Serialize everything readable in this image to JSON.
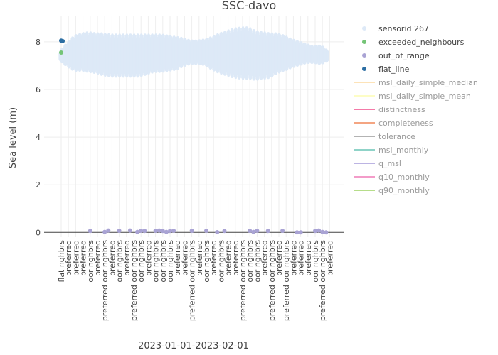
{
  "chart_data": {
    "type": "scatter",
    "title": "SSC-davo",
    "xlabel": "2023-01-01-2023-02-01",
    "ylabel": "Sea level (m)",
    "ylim": [
      -0.2,
      9.1
    ],
    "yticks": [
      0,
      2,
      4,
      6,
      8
    ],
    "grid": true,
    "legend_position": "right",
    "categories": [
      "flat nghbrs",
      "preferred",
      "preferred",
      "preferred",
      "oor nghbrs",
      "preferred",
      "preferred oor nghbrs",
      "preferred",
      "oor nghbrs",
      "preferred",
      "preferred oor nghbrs",
      "oor nghbrs",
      "preferred",
      "oor nghbrs",
      "oor nghbrs",
      "oor nghbrs",
      "preferred",
      "preferred",
      "preferred oor nghbrs",
      "preferred",
      "oor nghbrs",
      "preferred",
      "oor nghbrs",
      "preferred",
      "preferred",
      "preferred oor nghbrs",
      "oor nghbrs",
      "oor nghbrs",
      "preferred",
      "preferred oor nghbrs",
      "preferred",
      "preferred oor nghbrs",
      "preferred",
      "preferred",
      "preferred",
      "oor nghbrs",
      "preferred oor nghbrs",
      "preferred"
    ],
    "band": {
      "name": "sensorid 267",
      "color": "#dde9f7",
      "center": [
        7.4,
        7.45,
        7.5,
        7.55,
        7.55,
        7.5,
        7.45,
        7.4,
        7.4,
        7.4,
        7.4,
        7.4,
        7.45,
        7.5,
        7.5,
        7.5,
        7.5,
        7.55,
        7.55,
        7.55,
        7.55,
        7.5,
        7.5,
        7.5,
        7.5,
        7.5,
        7.5,
        7.4,
        7.4,
        7.4,
        7.5,
        7.5,
        7.5,
        7.5,
        7.5,
        7.45,
        7.45,
        7.4
      ],
      "amplitude": [
        0.2,
        0.5,
        0.75,
        0.8,
        0.85,
        0.85,
        0.9,
        0.9,
        0.9,
        0.9,
        0.9,
        0.9,
        0.85,
        0.8,
        0.8,
        0.75,
        0.7,
        0.6,
        0.5,
        0.5,
        0.55,
        0.7,
        0.85,
        0.95,
        1.05,
        1.1,
        1.1,
        1.05,
        1.0,
        0.95,
        0.85,
        0.75,
        0.6,
        0.5,
        0.4,
        0.35,
        0.4,
        0.2
      ]
    },
    "series": [
      {
        "name": "exceeded_neighbours",
        "color": "#74c476",
        "points": [
          {
            "x": 0,
            "y": 7.55
          }
        ]
      },
      {
        "name": "out_of_range",
        "color": "#a9a3d4",
        "points": [
          {
            "x": 4,
            "y": 0.06
          },
          {
            "x": 6,
            "y": 0.02
          },
          {
            "x": 6.5,
            "y": 0.08
          },
          {
            "x": 8,
            "y": 0.07
          },
          {
            "x": 9.5,
            "y": 0.08
          },
          {
            "x": 10.5,
            "y": 0.02
          },
          {
            "x": 11,
            "y": 0.07
          },
          {
            "x": 11.5,
            "y": 0.06
          },
          {
            "x": 13,
            "y": 0.07
          },
          {
            "x": 13.5,
            "y": 0.08
          },
          {
            "x": 14,
            "y": 0.06
          },
          {
            "x": 14.5,
            "y": 0.02
          },
          {
            "x": 15,
            "y": 0.06
          },
          {
            "x": 15.5,
            "y": 0.07
          },
          {
            "x": 18,
            "y": 0.07
          },
          {
            "x": 20,
            "y": 0.07
          },
          {
            "x": 21.5,
            "y": 0.01
          },
          {
            "x": 22.5,
            "y": 0.06
          },
          {
            "x": 26,
            "y": 0.07
          },
          {
            "x": 26.5,
            "y": 0.02
          },
          {
            "x": 27,
            "y": 0.07
          },
          {
            "x": 28.5,
            "y": 0.06
          },
          {
            "x": 30.5,
            "y": 0.07
          },
          {
            "x": 32.5,
            "y": 0.0
          },
          {
            "x": 33,
            "y": 0.0
          },
          {
            "x": 35,
            "y": 0.06
          },
          {
            "x": 35.5,
            "y": 0.08
          },
          {
            "x": 36,
            "y": 0.02
          },
          {
            "x": 36.5,
            "y": 0.0
          }
        ]
      },
      {
        "name": "flat_line",
        "color": "#2c6ea3",
        "points": [
          {
            "x": 0,
            "y": 8.05
          },
          {
            "x": 0.2,
            "y": 8.03
          }
        ]
      }
    ],
    "legend": [
      {
        "label": "sensorid 267",
        "color": "#dde9f7",
        "marker": "dot",
        "active": true
      },
      {
        "label": "exceeded_neighbours",
        "color": "#74c476",
        "marker": "dot",
        "active": true
      },
      {
        "label": "out_of_range",
        "color": "#a9a3d4",
        "marker": "dot",
        "active": true
      },
      {
        "label": "flat_line",
        "color": "#2c6ea3",
        "marker": "dot",
        "active": true
      },
      {
        "label": "msl_daily_simple_median",
        "color": "#fde3b8",
        "marker": "line",
        "active": false
      },
      {
        "label": "msl_daily_simple_mean",
        "color": "#fdfdc6",
        "marker": "line",
        "active": false
      },
      {
        "label": "distinctness",
        "color": "#f47aa8",
        "marker": "line",
        "active": false
      },
      {
        "label": "completeness",
        "color": "#f4a582",
        "marker": "line",
        "active": false
      },
      {
        "label": "tolerance",
        "color": "#b3b3b3",
        "marker": "line",
        "active": false
      },
      {
        "label": "msl_monthly",
        "color": "#8fd3c8",
        "marker": "line",
        "active": false
      },
      {
        "label": "q_msl",
        "color": "#bcb4e3",
        "marker": "line",
        "active": false
      },
      {
        "label": "q10_monthly",
        "color": "#f39cc9",
        "marker": "line",
        "active": false
      },
      {
        "label": "q90_monthly",
        "color": "#b6dd8a",
        "marker": "line",
        "active": false
      }
    ]
  }
}
